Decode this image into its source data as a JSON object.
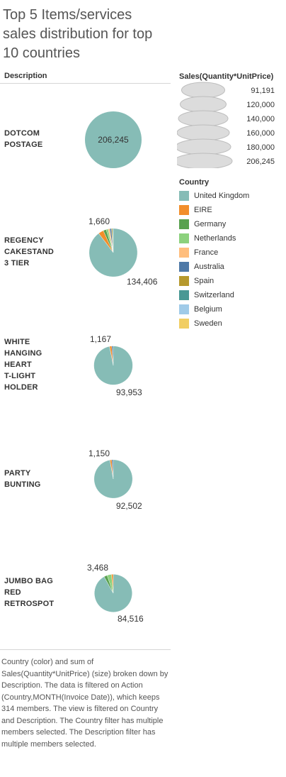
{
  "title": "Top 5 Items/services sales distribution for top 10 countries",
  "description_header": "Description",
  "countries": [
    {
      "name": "United Kingdom",
      "color": "#86bcb6"
    },
    {
      "name": "EIRE",
      "color": "#f28e2b"
    },
    {
      "name": "Germany",
      "color": "#59a14f"
    },
    {
      "name": "Netherlands",
      "color": "#8cd17d"
    },
    {
      "name": "France",
      "color": "#ffbe7d"
    },
    {
      "name": "Australia",
      "color": "#4e79a7"
    },
    {
      "name": "Spain",
      "color": "#b6992d"
    },
    {
      "name": "Switzerland",
      "color": "#499894"
    },
    {
      "name": "Belgium",
      "color": "#a0cbe8"
    },
    {
      "name": "Sweden",
      "color": "#f1ce63"
    }
  ],
  "size_legend": {
    "title": "Sales(Quantity*UnitPrice)",
    "values": [
      "91,191",
      "120,000",
      "140,000",
      "160,000",
      "180,000",
      "206,245"
    ]
  },
  "color_legend_title": "Country",
  "chart_data": {
    "type": "pie",
    "size_measure": "Sales(Quantity*UnitPrice)",
    "color_dimension": "Country",
    "rows": [
      {
        "description": [
          "DOTCOM",
          "POSTAGE"
        ],
        "total": 206245,
        "labels": [
          "206,245"
        ],
        "slices": [
          {
            "country": "United Kingdom",
            "value": 206245
          }
        ]
      },
      {
        "description": [
          "REGENCY",
          "CAKESTAND",
          "3 TIER"
        ],
        "total": 150000,
        "labels": [
          "1,660",
          "134,406"
        ],
        "slices": [
          {
            "country": "United Kingdom",
            "value": 134406
          },
          {
            "country": "EIRE",
            "value": 5400
          },
          {
            "country": "Germany",
            "value": 3000
          },
          {
            "country": "Netherlands",
            "value": 2000
          },
          {
            "country": "France",
            "value": 1700
          },
          {
            "country": "Australia",
            "value": 1660
          },
          {
            "country": "Spain",
            "value": 1100
          },
          {
            "country": "Switzerland",
            "value": 700
          }
        ]
      },
      {
        "description": [
          "WHITE",
          "HANGING",
          "HEART",
          "T-LIGHT",
          "HOLDER"
        ],
        "total": 97000,
        "labels": [
          "1,167",
          "93,953"
        ],
        "slices": [
          {
            "country": "United Kingdom",
            "value": 93953
          },
          {
            "country": "EIRE",
            "value": 1880
          },
          {
            "country": "Australia",
            "value": 1167
          }
        ]
      },
      {
        "description": [
          "PARTY",
          "BUNTING"
        ],
        "total": 95200,
        "labels": [
          "1,150",
          "92,502"
        ],
        "slices": [
          {
            "country": "United Kingdom",
            "value": 92502
          },
          {
            "country": "EIRE",
            "value": 1548
          },
          {
            "country": "Australia",
            "value": 1150
          }
        ]
      },
      {
        "description": [
          "JUMBO BAG",
          "RED",
          "RETROSPOT"
        ],
        "total": 92000,
        "labels": [
          "3,468",
          "84,516"
        ],
        "slices": [
          {
            "country": "United Kingdom",
            "value": 84516
          },
          {
            "country": "Germany",
            "value": 2600
          },
          {
            "country": "Netherlands",
            "value": 3468
          },
          {
            "country": "EIRE",
            "value": 1416
          }
        ]
      }
    ]
  },
  "caption": "Country (color) and sum of Sales(Quantity*UnitPrice) (size) broken down by Description. The data is filtered on Action (Country,MONTH(Invoice Date)), which keeps 314 members. The view is filtered on Country and Description. The Country filter has multiple members selected. The Description filter has multiple members selected."
}
